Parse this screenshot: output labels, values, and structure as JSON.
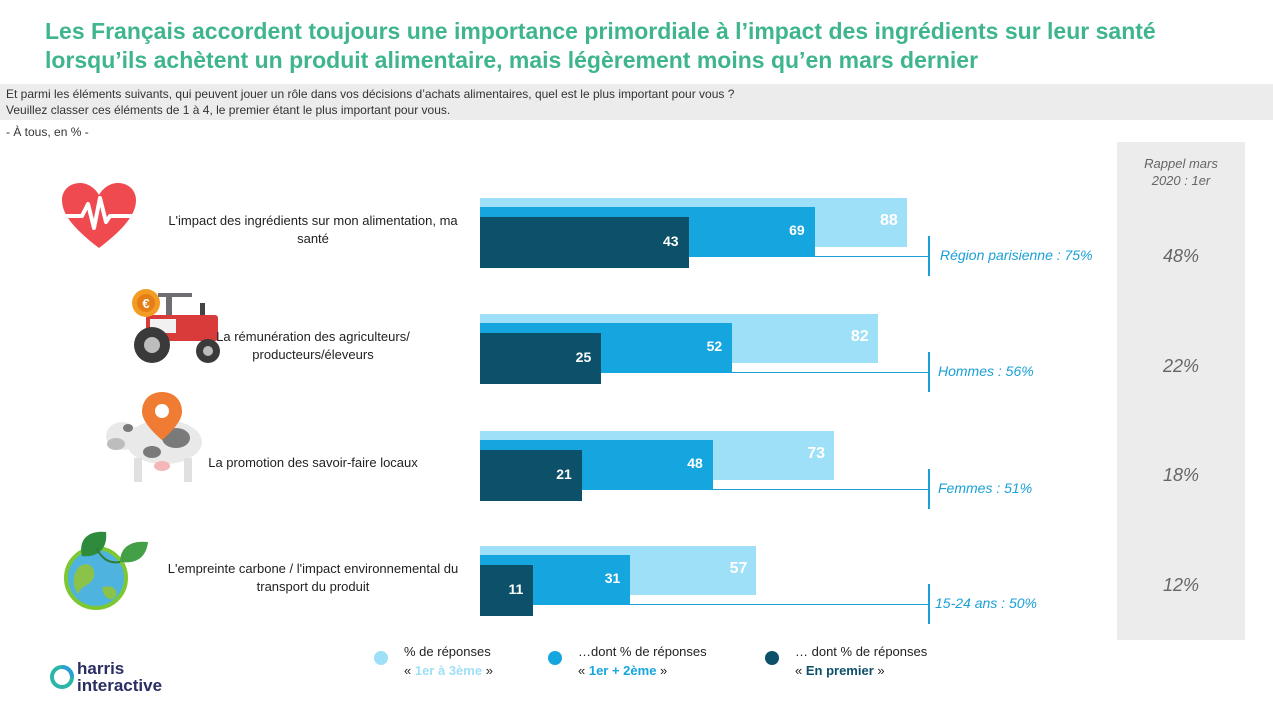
{
  "title_line1": "Les Français accordent toujours une importance primordiale à l’impact des ingrédients sur leur santé",
  "title_line2": "lorsqu’ils achètent un produit alimentaire, mais légèrement moins qu’en mars dernier",
  "question_line1": "Et parmi les éléments suivants, qui peuvent jouer un rôle dans vos décisions d’achats alimentaires, quel est le plus important pour vous ?",
  "question_line2": "Veuillez classer ces éléments de 1 à 4, le premier étant le plus important pour vous.",
  "base": "- À tous, en % -",
  "rappel_header_line1": "Rappel mars",
  "rappel_header_line2": "2020 : 1er",
  "colors": {
    "top3": "#9ee0f7",
    "top2": "#16a6df",
    "first": "#0d5069",
    "title": "#3fb58e",
    "note": "#1aa0d6"
  },
  "icons": [
    "heart-pulse-icon",
    "tractor-icon",
    "cow-location-icon",
    "earth-leaf-icon"
  ],
  "chart_data": {
    "type": "bar",
    "orientation": "horizontal",
    "categories": [
      "L’impact des ingrédients sur mon alimentation, ma santé",
      "La rémunération des agriculteurs/ producteurs/éleveurs",
      "La promotion des savoir-faire locaux",
      "L’empreinte carbone / l’impact environnemental du transport du produit"
    ],
    "label_lines": [
      [
        "L'impact des ingrédients sur mon alimentation, ma",
        "santé"
      ],
      [
        "La rémunération des agriculteurs/",
        "producteurs/éleveurs"
      ],
      [
        "La promotion des savoir-faire locaux"
      ],
      [
        "L'empreinte carbone / l'impact environnemental du",
        "transport du produit"
      ]
    ],
    "series": [
      {
        "name": "% de réponses « 1er à 3ème »",
        "values": [
          88,
          82,
          73,
          57
        ]
      },
      {
        "name": "…dont % de réponses « 1er + 2ème »",
        "values": [
          69,
          52,
          48,
          31
        ]
      },
      {
        "name": "… dont % de réponses « En premier »",
        "values": [
          43,
          25,
          21,
          11
        ]
      }
    ],
    "callouts": [
      "Région parisienne : 75%",
      "Hommes : 56%",
      "Femmes : 51%",
      "15-24 ans : 50%"
    ],
    "rappel_mars_2020_1er": [
      "48%",
      "22%",
      "18%",
      "12%"
    ],
    "xlim": [
      0,
      100
    ]
  },
  "legend": [
    {
      "line1": "% de réponses",
      "open": "« ",
      "highlight": "1er à 3ème",
      "close": " »"
    },
    {
      "line1": "…dont % de réponses",
      "open": "« ",
      "highlight": "1er + 2ème",
      "close": " »"
    },
    {
      "line1": "… dont % de réponses",
      "open": "« ",
      "highlight": "En premier",
      "close": " »"
    }
  ],
  "logo": {
    "line1": "harris",
    "line2": "interactive"
  }
}
